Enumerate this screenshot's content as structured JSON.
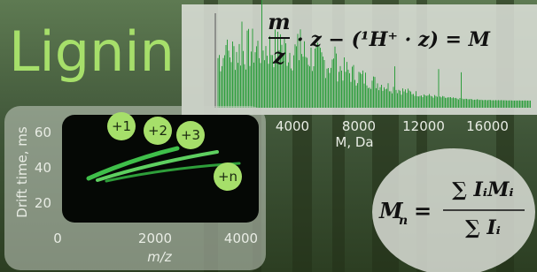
{
  "title": "Lignin",
  "equation": {
    "numerator": "m",
    "denominator": "z",
    "rest": "· z − (¹H⁺ · z) = M"
  },
  "mass_spectrum": {
    "xticks": [
      "4000",
      "8000",
      "12000",
      "16000"
    ],
    "xlabel": "M, Da"
  },
  "drift_plot": {
    "yticks": [
      "60",
      "40",
      "20"
    ],
    "xticks": [
      "0",
      "2000",
      "4000"
    ],
    "ylabel": "Drift time, ms",
    "xlabel": "m/z",
    "charge_states": [
      "+1",
      "+2",
      "+3",
      "+n"
    ]
  },
  "mn_formula": {
    "lhs": "M",
    "lhs_sub": "n",
    "numerator": "∑ IᵢMᵢ",
    "denominator": "∑ Iᵢ"
  }
}
